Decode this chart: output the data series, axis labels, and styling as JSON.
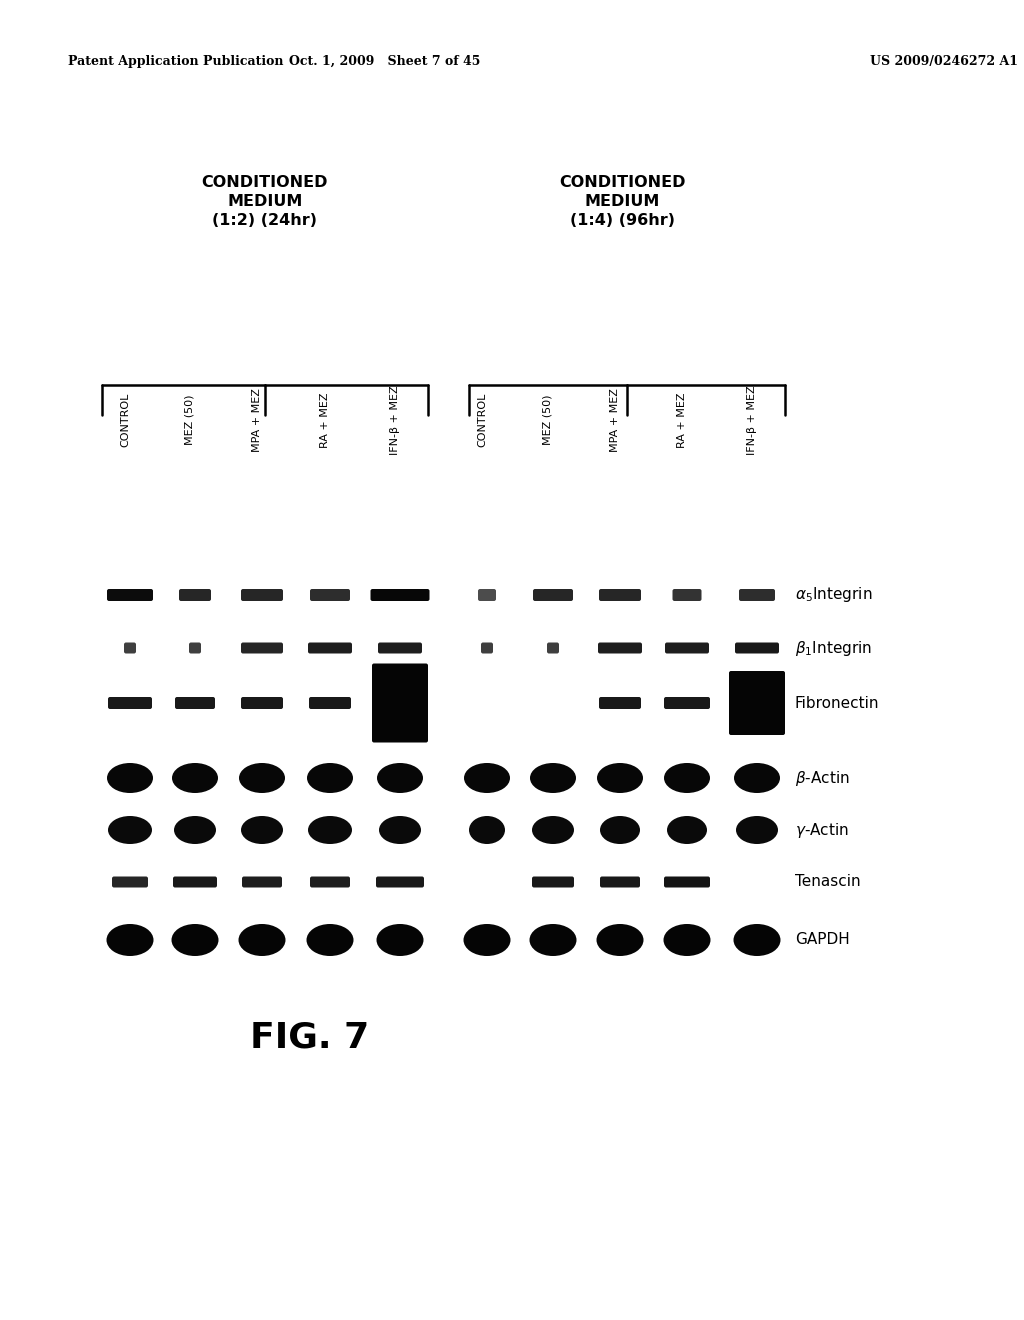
{
  "header_left": "Patent Application Publication",
  "header_mid": "Oct. 1, 2009   Sheet 7 of 45",
  "header_right": "US 2009/0246272 A1",
  "col_labels": [
    "CONTROL",
    "MEZ (50)",
    "MPA + MEZ",
    "RA + MEZ",
    "IFN-β + MEZ",
    "CONTROL",
    "MEZ (50)",
    "MPA + MEZ",
    "RA + MEZ",
    "IFN-β + MEZ"
  ],
  "figure_label": "FIG. 7",
  "background_color": "#ffffff"
}
